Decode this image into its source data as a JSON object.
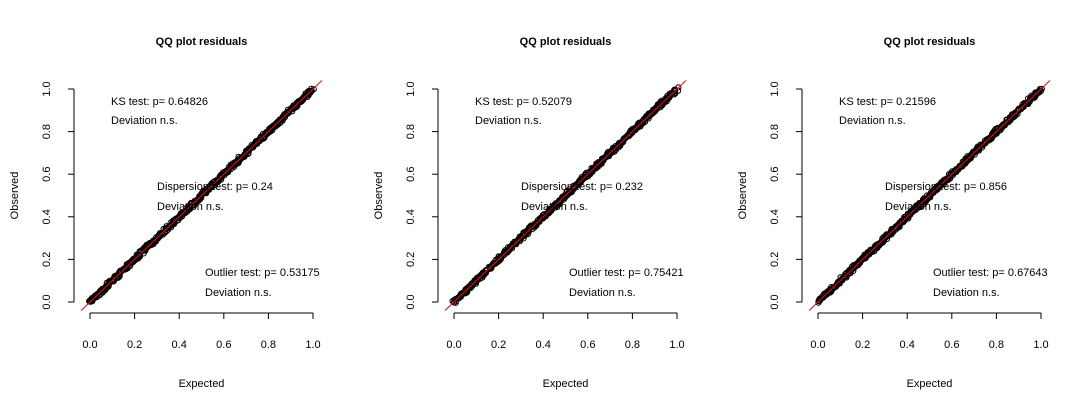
{
  "chart_data": [
    {
      "type": "scatter",
      "title": "QQ plot residuals",
      "xlabel": "Expected",
      "ylabel": "Observed",
      "xlim": [
        0,
        1
      ],
      "ylim": [
        0,
        1
      ],
      "xticks": [
        "0.0",
        "0.2",
        "0.4",
        "0.6",
        "0.8",
        "1.0"
      ],
      "yticks": [
        "0.0",
        "0.2",
        "0.4",
        "0.6",
        "0.8",
        "1.0"
      ],
      "reference_line": {
        "x": [
          0,
          1
        ],
        "y": [
          0,
          1
        ],
        "color": "#ff0000"
      },
      "points_color": "#000000",
      "series": [
        {
          "x": [
            0,
            0.1,
            0.2,
            0.3,
            0.4,
            0.5,
            0.6,
            0.7,
            0.8,
            0.9,
            1.0
          ],
          "values": [
            0,
            0.1,
            0.2,
            0.3,
            0.4,
            0.5,
            0.6,
            0.7,
            0.8,
            0.9,
            1.0
          ]
        }
      ],
      "annotations": [
        {
          "lines": [
            "KS test: p= 0.64826",
            "Deviation  n.s."
          ]
        },
        {
          "lines": [
            "Dispersion test: p= 0.24",
            "Deviation  n.s."
          ]
        },
        {
          "lines": [
            "Outlier test: p= 0.53175",
            "Deviation  n.s."
          ]
        }
      ]
    },
    {
      "type": "scatter",
      "title": "QQ plot residuals",
      "xlabel": "Expected",
      "ylabel": "Observed",
      "xlim": [
        0,
        1
      ],
      "ylim": [
        0,
        1
      ],
      "xticks": [
        "0.0",
        "0.2",
        "0.4",
        "0.6",
        "0.8",
        "1.0"
      ],
      "yticks": [
        "0.0",
        "0.2",
        "0.4",
        "0.6",
        "0.8",
        "1.0"
      ],
      "reference_line": {
        "x": [
          0,
          1
        ],
        "y": [
          0,
          1
        ],
        "color": "#ff0000"
      },
      "points_color": "#000000",
      "series": [
        {
          "x": [
            0,
            0.1,
            0.2,
            0.3,
            0.4,
            0.5,
            0.6,
            0.7,
            0.8,
            0.9,
            1.0
          ],
          "values": [
            0,
            0.1,
            0.2,
            0.3,
            0.4,
            0.5,
            0.6,
            0.7,
            0.8,
            0.9,
            1.0
          ]
        }
      ],
      "annotations": [
        {
          "lines": [
            "KS test: p= 0.52079",
            "Deviation  n.s."
          ]
        },
        {
          "lines": [
            "Dispersion test: p= 0.232",
            "Deviation  n.s."
          ]
        },
        {
          "lines": [
            "Outlier test: p= 0.75421",
            "Deviation  n.s."
          ]
        }
      ]
    },
    {
      "type": "scatter",
      "title": "QQ plot residuals",
      "xlabel": "Expected",
      "ylabel": "Observed",
      "xlim": [
        0,
        1
      ],
      "ylim": [
        0,
        1
      ],
      "xticks": [
        "0.0",
        "0.2",
        "0.4",
        "0.6",
        "0.8",
        "1.0"
      ],
      "yticks": [
        "0.0",
        "0.2",
        "0.4",
        "0.6",
        "0.8",
        "1.0"
      ],
      "reference_line": {
        "x": [
          0,
          1
        ],
        "y": [
          0,
          1
        ],
        "color": "#ff0000"
      },
      "points_color": "#000000",
      "series": [
        {
          "x": [
            0,
            0.1,
            0.2,
            0.3,
            0.4,
            0.5,
            0.6,
            0.7,
            0.8,
            0.9,
            1.0
          ],
          "values": [
            0,
            0.1,
            0.2,
            0.3,
            0.4,
            0.5,
            0.6,
            0.7,
            0.8,
            0.9,
            1.0
          ]
        }
      ],
      "annotations": [
        {
          "lines": [
            "KS test: p= 0.21596",
            "Deviation  n.s."
          ]
        },
        {
          "lines": [
            "Dispersion test: p= 0.856",
            "Deviation  n.s."
          ]
        },
        {
          "lines": [
            "Outlier test: p= 0.67643",
            "Deviation  n.s."
          ]
        }
      ]
    }
  ]
}
